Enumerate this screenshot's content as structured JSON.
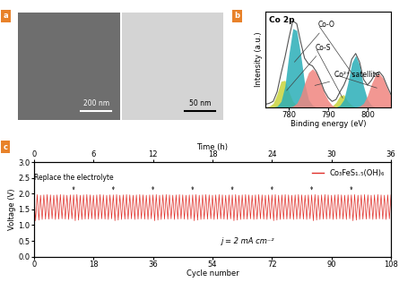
{
  "chart_data": [
    {
      "type": "image",
      "panel": "a",
      "scale_bars": [
        "200 nm",
        "50 nm"
      ]
    },
    {
      "type": "area",
      "panel": "b",
      "title": "Co 2p",
      "x_label": "Binding energy (eV)",
      "y_label": "Intensity (a.u.)",
      "x": [
        774,
        775,
        776,
        777,
        778,
        779,
        780,
        781,
        782,
        783,
        784,
        785,
        786,
        787,
        788,
        789,
        790,
        791,
        792,
        793,
        794,
        795,
        796,
        797,
        798,
        799,
        800,
        801,
        802,
        803,
        804,
        805,
        806
      ],
      "series": [
        {
          "name": "Co-S",
          "type": "area",
          "color": "#c9d43c",
          "values": [
            0,
            1,
            4,
            14,
            27,
            28,
            16,
            6,
            2,
            0,
            0,
            0,
            0,
            0,
            0,
            0,
            0,
            1,
            5,
            12,
            13,
            6,
            2,
            0,
            0,
            0,
            0,
            0,
            0,
            0,
            0,
            0,
            0
          ]
        },
        {
          "name": "Co-O",
          "type": "area",
          "color": "#2aaeb8",
          "values": [
            0,
            0,
            0,
            1,
            6,
            22,
            55,
            82,
            80,
            55,
            25,
            8,
            2,
            0,
            0,
            0,
            0,
            0,
            0,
            2,
            8,
            25,
            46,
            54,
            44,
            22,
            8,
            2,
            0,
            0,
            0,
            0,
            0
          ]
        },
        {
          "name": "Co²⁺ satellite",
          "type": "area",
          "color": "#f0857f",
          "values": [
            0,
            0,
            0,
            0,
            0,
            0,
            0,
            1,
            4,
            12,
            25,
            36,
            40,
            36,
            26,
            15,
            7,
            2,
            0,
            0,
            0,
            0,
            0,
            0,
            1,
            4,
            12,
            24,
            33,
            35,
            30,
            20,
            11
          ]
        },
        {
          "type": "line",
          "color": "#555555",
          "values": [
            3,
            4,
            6,
            16,
            35,
            52,
            72,
            90,
            87,
            68,
            51,
            45,
            43,
            37,
            28,
            17,
            10,
            6,
            8,
            16,
            23,
            33,
            50,
            56,
            47,
            29,
            23,
            28,
            35,
            37,
            32,
            22,
            13
          ]
        }
      ],
      "xlim": [
        774,
        806
      ],
      "xticks": [
        780,
        790,
        800
      ],
      "ylim": [
        0,
        100
      ],
      "tick_labels": "x"
    },
    {
      "type": "line",
      "panel": "c",
      "x_label": "Cycle number",
      "y_label": "Voltage (V)",
      "x2_label": "Time (h)",
      "x": [
        0,
        0.5,
        1,
        1.5,
        2,
        2.5,
        3,
        3.5,
        4,
        4.5,
        5,
        5.5,
        6,
        6.5,
        7,
        7.5,
        8,
        8.5,
        9,
        9.5,
        10,
        10.5,
        11,
        11.5,
        12,
        12.5,
        13,
        13.5,
        14,
        14.5,
        15,
        15.5,
        16,
        16.5,
        17,
        17.5,
        18,
        18.5,
        19,
        19.5,
        20,
        20.5,
        21,
        21.5,
        22,
        22.5,
        23,
        23.5,
        24,
        24.5,
        25,
        25.5,
        26,
        26.5,
        27,
        27.5,
        28,
        28.5,
        29,
        29.5,
        30,
        30.5,
        31,
        31.5,
        32,
        32.5,
        33,
        33.5,
        34,
        34.5,
        35,
        35.5,
        36,
        36.5,
        37,
        37.5,
        38,
        38.5,
        39,
        39.5,
        40,
        40.5,
        41,
        41.5,
        42,
        42.5,
        43,
        43.5,
        44,
        44.5,
        45,
        45.5,
        46,
        46.5,
        47,
        47.5,
        48,
        48.5,
        49,
        49.5,
        50,
        50.5,
        51,
        51.5,
        52,
        52.5,
        53,
        53.5,
        54,
        54.5,
        55,
        55.5,
        56,
        56.5,
        57,
        57.5,
        58,
        58.5,
        59,
        59.5,
        60,
        60.5,
        61,
        61.5,
        62,
        62.5,
        63,
        63.5,
        64,
        64.5,
        65,
        65.5,
        66,
        66.5,
        67,
        67.5,
        68,
        68.5,
        69,
        69.5,
        70,
        70.5,
        71,
        71.5,
        72,
        72.5,
        73,
        73.5,
        74,
        74.5,
        75,
        75.5,
        76,
        76.5,
        77,
        77.5,
        78,
        78.5,
        79,
        79.5,
        80,
        80.5,
        81,
        81.5,
        82,
        82.5,
        83,
        83.5,
        84,
        84.5,
        85,
        85.5,
        86,
        86.5,
        87,
        87.5,
        88,
        88.5,
        89,
        89.5,
        90,
        90.5,
        91,
        91.5,
        92,
        92.5,
        93,
        93.5,
        94,
        94.5,
        95,
        95.5,
        96,
        96.5,
        97,
        97.5,
        98,
        98.5,
        99,
        99.5,
        100,
        100.5,
        101,
        101.5,
        102,
        102.5,
        103,
        103.5,
        104,
        104.5,
        105,
        105.5,
        106,
        106.5,
        107,
        107.5,
        108
      ],
      "series": [
        {
          "name": "Co₃FeS₁.₅(OH)₆",
          "color": "#e0302a",
          "values": [
            1.96,
            1.14,
            1.97,
            1.16,
            1.95,
            1.18,
            1.96,
            1.19,
            1.97,
            1.19,
            1.96,
            1.2,
            1.95,
            1.18,
            1.96,
            1.19,
            1.97,
            1.2,
            1.96,
            1.19,
            1.95,
            1.18,
            1.96,
            1.2,
            1.96,
            1.14,
            1.97,
            1.16,
            1.95,
            1.18,
            1.96,
            1.19,
            1.97,
            1.19,
            1.96,
            1.2,
            1.95,
            1.18,
            1.96,
            1.19,
            1.97,
            1.2,
            1.96,
            1.19,
            1.95,
            1.18,
            1.96,
            1.2,
            1.96,
            1.14,
            1.97,
            1.16,
            1.95,
            1.18,
            1.96,
            1.19,
            1.97,
            1.19,
            1.96,
            1.2,
            1.95,
            1.18,
            1.96,
            1.19,
            1.97,
            1.2,
            1.96,
            1.19,
            1.95,
            1.18,
            1.96,
            1.2,
            1.96,
            1.14,
            1.97,
            1.16,
            1.95,
            1.18,
            1.96,
            1.19,
            1.97,
            1.19,
            1.96,
            1.2,
            1.95,
            1.18,
            1.96,
            1.19,
            1.97,
            1.2,
            1.96,
            1.19,
            1.95,
            1.18,
            1.96,
            1.2,
            1.96,
            1.14,
            1.97,
            1.16,
            1.95,
            1.18,
            1.96,
            1.19,
            1.97,
            1.19,
            1.96,
            1.2,
            1.95,
            1.18,
            1.96,
            1.19,
            1.97,
            1.2,
            1.96,
            1.19,
            1.95,
            1.18,
            1.96,
            1.2,
            1.96,
            1.14,
            1.97,
            1.16,
            1.95,
            1.18,
            1.96,
            1.19,
            1.97,
            1.19,
            1.96,
            1.2,
            1.95,
            1.18,
            1.96,
            1.19,
            1.97,
            1.2,
            1.96,
            1.19,
            1.95,
            1.18,
            1.96,
            1.2,
            1.96,
            1.14,
            1.97,
            1.16,
            1.95,
            1.18,
            1.96,
            1.19,
            1.97,
            1.19,
            1.96,
            1.2,
            1.95,
            1.18,
            1.96,
            1.19,
            1.97,
            1.2,
            1.96,
            1.19,
            1.95,
            1.18,
            1.96,
            1.2,
            1.96,
            1.14,
            1.97,
            1.16,
            1.95,
            1.18,
            1.96,
            1.19,
            1.97,
            1.19,
            1.96,
            1.2,
            1.95,
            1.18,
            1.96,
            1.19,
            1.97,
            1.2,
            1.96,
            1.19,
            1.95,
            1.18,
            1.96,
            1.2,
            1.96,
            1.14,
            1.97,
            1.16,
            1.95,
            1.18,
            1.96,
            1.19,
            1.97,
            1.19,
            1.96,
            1.2,
            1.95,
            1.18,
            1.96,
            1.19,
            1.97,
            1.2,
            1.96,
            1.19,
            1.95,
            1.18,
            1.96,
            1.2,
            1.96
          ]
        }
      ],
      "xlim": [
        0,
        108
      ],
      "xticks": [
        0,
        18,
        36,
        54,
        72,
        90,
        108
      ],
      "x2lim": [
        0,
        36
      ],
      "x2ticks": [
        0,
        6,
        12,
        18,
        24,
        30,
        36
      ],
      "ylim": [
        0,
        3
      ],
      "yticks": [
        {
          "value": 0,
          "label": "0.0"
        },
        0.5,
        {
          "value": 1,
          "label": "1.0"
        },
        1.5,
        {
          "value": 2,
          "label": "2.0"
        },
        2.5,
        {
          "value": 3,
          "label": "3.0"
        }
      ],
      "legend": "upper right",
      "annotations": [
        {
          "text": "Replace the electrolyte",
          "x": [
            12,
            24,
            36,
            48,
            60,
            72,
            84,
            96
          ]
        },
        {
          "text": "j = 2 mA cm⁻²"
        }
      ]
    }
  ]
}
